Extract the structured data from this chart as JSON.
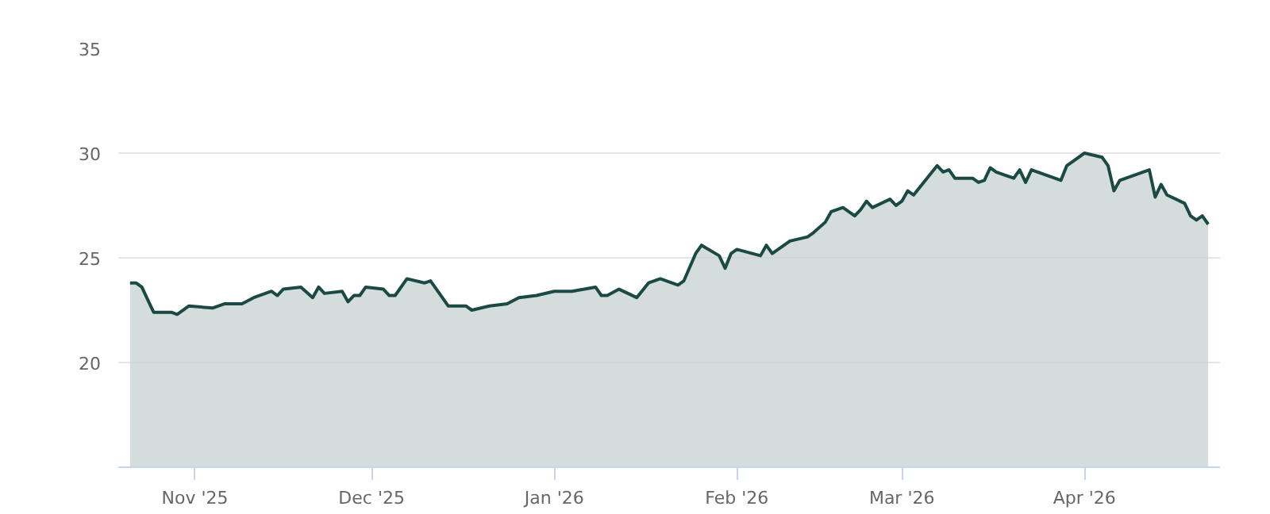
{
  "chart_data": {
    "type": "area",
    "x": [
      "2025-10-21",
      "2025-10-22",
      "2025-10-23",
      "2025-10-24",
      "2025-10-25",
      "2025-10-28",
      "2025-10-29",
      "2025-10-31",
      "2025-11-04",
      "2025-11-06",
      "2025-11-09",
      "2025-11-11",
      "2025-11-14",
      "2025-11-15",
      "2025-11-16",
      "2025-11-19",
      "2025-11-21",
      "2025-11-22",
      "2025-11-23",
      "2025-11-26",
      "2025-11-27",
      "2025-11-28",
      "2025-11-29",
      "2025-11-30",
      "2025-12-03",
      "2025-12-04",
      "2025-12-05",
      "2025-12-07",
      "2025-12-10",
      "2025-12-11",
      "2025-12-13",
      "2025-12-14",
      "2025-12-17",
      "2025-12-18",
      "2025-12-21",
      "2025-12-24",
      "2025-12-26",
      "2025-12-29",
      "2026-01-01",
      "2026-01-02",
      "2026-01-04",
      "2026-01-08",
      "2026-01-09",
      "2026-01-10",
      "2026-01-12",
      "2026-01-15",
      "2026-01-17",
      "2026-01-19",
      "2026-01-22",
      "2026-01-23",
      "2026-01-25",
      "2026-01-26",
      "2026-01-29",
      "2026-01-30",
      "2026-01-31",
      "2026-02-01",
      "2026-02-05",
      "2026-02-06",
      "2026-02-07",
      "2026-02-08",
      "2026-02-10",
      "2026-02-13",
      "2026-02-14",
      "2026-02-16",
      "2026-02-17",
      "2026-02-19",
      "2026-02-21",
      "2026-02-22",
      "2026-02-23",
      "2026-02-24",
      "2026-02-27",
      "2026-02-28",
      "2026-03-01",
      "2026-03-02",
      "2026-03-03",
      "2026-03-07",
      "2026-03-08",
      "2026-03-09",
      "2026-03-10",
      "2026-03-13",
      "2026-03-14",
      "2026-03-15",
      "2026-03-16",
      "2026-03-17",
      "2026-03-20",
      "2026-03-21",
      "2026-03-22",
      "2026-03-23",
      "2026-03-28",
      "2026-03-29",
      "2026-03-30",
      "2026-04-01",
      "2026-04-04",
      "2026-04-05",
      "2026-04-06",
      "2026-04-07",
      "2026-04-12",
      "2026-04-13",
      "2026-04-14",
      "2026-04-15",
      "2026-04-18",
      "2026-04-19",
      "2026-04-20",
      "2026-04-21",
      "2026-04-22"
    ],
    "series": [
      {
        "color": "#1b4a44",
        "values": [
          23.8,
          23.8,
          23.6,
          23.0,
          22.4,
          22.4,
          22.3,
          22.7,
          22.6,
          22.8,
          22.8,
          23.1,
          23.4,
          23.2,
          23.5,
          23.6,
          23.1,
          23.6,
          23.3,
          23.4,
          22.9,
          23.2,
          23.2,
          23.6,
          23.5,
          23.2,
          23.2,
          24.0,
          23.8,
          23.9,
          23.1,
          22.7,
          22.7,
          22.5,
          22.7,
          22.8,
          23.1,
          23.2,
          23.4,
          23.4,
          23.4,
          23.6,
          23.2,
          23.2,
          23.5,
          23.1,
          23.8,
          24.0,
          23.7,
          23.9,
          25.2,
          25.6,
          25.1,
          24.5,
          25.2,
          25.4,
          25.1,
          25.6,
          25.2,
          25.4,
          25.8,
          26.0,
          26.2,
          26.7,
          27.2,
          27.4,
          27.0,
          27.3,
          27.7,
          27.4,
          27.8,
          27.5,
          27.7,
          28.2,
          28.0,
          29.4,
          29.1,
          29.2,
          28.8,
          28.8,
          28.6,
          28.7,
          29.3,
          29.1,
          28.8,
          29.2,
          28.6,
          29.2,
          28.7,
          29.4,
          29.6,
          30.0,
          29.8,
          29.4,
          28.2,
          28.7,
          29.2,
          27.9,
          28.5,
          28.0,
          27.6,
          27.0,
          26.8,
          27.0,
          26.6
        ]
      }
    ],
    "xlim": [
      "2025-10-19",
      "2026-04-24"
    ],
    "xticks": [
      {
        "value": "2025-11-01",
        "label": "Nov '25"
      },
      {
        "value": "2025-12-01",
        "label": "Dec '25"
      },
      {
        "value": "2026-01-01",
        "label": "Jan '26"
      },
      {
        "value": "2026-02-01",
        "label": "Feb '26"
      },
      {
        "value": "2026-03-01",
        "label": "Mar '26"
      },
      {
        "value": "2026-04-01",
        "label": "Apr '26"
      }
    ],
    "ylim": [
      15,
      35
    ],
    "yticks": [
      20,
      25,
      30,
      35
    ],
    "grid": "y"
  }
}
